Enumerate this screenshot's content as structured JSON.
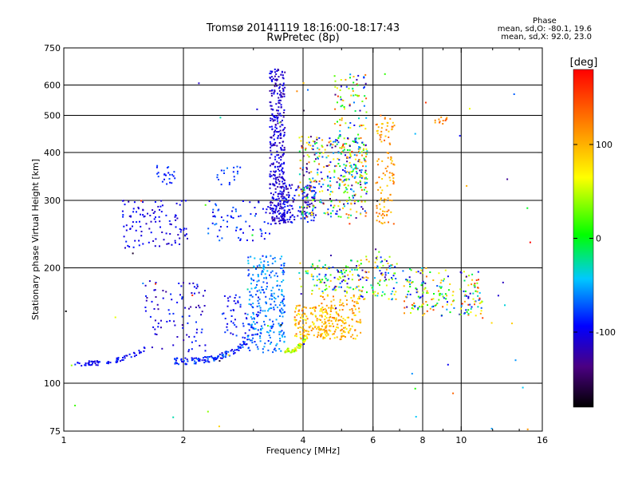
{
  "title_line1": "Tromsø 20141119 18:16:00-18:17:43",
  "title_line2": "RwPretec (8p)",
  "phase_info": {
    "title": "Phase",
    "line1": "mean, sd,O: -80.1, 19.6",
    "line2": "mean, sd,X: 92.0, 23.0"
  },
  "colorbar": {
    "label": "[deg]",
    "ticks": [
      {
        "value": 100,
        "label": "100"
      },
      {
        "value": 0,
        "label": "0"
      },
      {
        "value": -100,
        "label": "-100"
      }
    ],
    "range": [
      -180,
      180
    ]
  },
  "chart_data": {
    "type": "scatter",
    "xlabel": "Frequency [MHz]",
    "ylabel": "Stationary phase Virtual Height [km]",
    "xscale": "log",
    "yscale": "log",
    "xlim": [
      1,
      16
    ],
    "ylim": [
      75,
      750
    ],
    "grid": true,
    "xticks": [
      {
        "value": 1,
        "label": "1"
      },
      {
        "value": 2,
        "label": "2"
      },
      {
        "value": 4,
        "label": "4"
      },
      {
        "value": 6,
        "label": "6"
      },
      {
        "value": 8,
        "label": "8"
      },
      {
        "value": 10,
        "label": "10"
      },
      {
        "value": 16,
        "label": "16"
      }
    ],
    "xgrid": [
      2,
      4,
      6,
      8,
      10
    ],
    "xminor": [
      3,
      5,
      7,
      9,
      12,
      14
    ],
    "yticks": [
      {
        "value": 75,
        "label": "75"
      },
      {
        "value": 100,
        "label": "100"
      },
      {
        "value": 200,
        "label": "200"
      },
      {
        "value": 300,
        "label": "300"
      },
      {
        "value": 400,
        "label": "400"
      },
      {
        "value": 500,
        "label": "500"
      },
      {
        "value": 600,
        "label": "600"
      },
      {
        "value": 750,
        "label": "750"
      }
    ],
    "ygrid": [
      100,
      200,
      300,
      400,
      500,
      600
    ],
    "clusters": [
      {
        "f": [
          1.05,
          1.6
        ],
        "h": [
          111,
          124
        ],
        "phase": [
          -110,
          -80
        ],
        "n": 70,
        "shape": "rising"
      },
      {
        "f": [
          1.4,
          2.05
        ],
        "h": [
          225,
          300
        ],
        "phase": [
          -120,
          -85
        ],
        "n": 110
      },
      {
        "f": [
          1.7,
          1.95
        ],
        "h": [
          330,
          370
        ],
        "phase": [
          -100,
          -70
        ],
        "n": 22
      },
      {
        "f": [
          1.6,
          2.3
        ],
        "h": [
          120,
          185
        ],
        "phase": [
          -130,
          -80
        ],
        "n": 90
      },
      {
        "f": [
          1.9,
          2.9
        ],
        "h": [
          112,
          130
        ],
        "phase": [
          -110,
          -60
        ],
        "n": 120,
        "shape": "rising"
      },
      {
        "f": [
          2.3,
          3.3
        ],
        "h": [
          235,
          300
        ],
        "phase": [
          -110,
          -60
        ],
        "n": 70
      },
      {
        "f": [
          2.4,
          2.8
        ],
        "h": [
          330,
          370
        ],
        "phase": [
          -90,
          -60
        ],
        "n": 18
      },
      {
        "f": [
          2.5,
          3.1
        ],
        "h": [
          130,
          170
        ],
        "phase": [
          -110,
          -70
        ],
        "n": 60
      },
      {
        "f": [
          2.9,
          3.6
        ],
        "h": [
          120,
          215
        ],
        "phase": [
          -90,
          -40
        ],
        "n": 260
      },
      {
        "f": [
          3.3,
          3.6
        ],
        "h": [
          260,
          660
        ],
        "phase": [
          -130,
          -90
        ],
        "n": 360
      },
      {
        "f": [
          3.5,
          4.3
        ],
        "h": [
          262,
          330
        ],
        "phase": [
          -130,
          -80
        ],
        "n": 140
      },
      {
        "f": [
          3.8,
          4.6
        ],
        "h": [
          130,
          160
        ],
        "phase": [
          60,
          140
        ],
        "n": 130
      },
      {
        "f": [
          3.6,
          4.1
        ],
        "h": [
          120,
          135
        ],
        "phase": [
          20,
          90
        ],
        "n": 60,
        "shape": "rising"
      },
      {
        "f": [
          4.4,
          5.6
        ],
        "h": [
          130,
          170
        ],
        "phase": [
          70,
          130
        ],
        "n": 170
      },
      {
        "f": [
          3.9,
          5.6
        ],
        "h": [
          170,
          210
        ],
        "phase": [
          -130,
          100
        ],
        "n": 120
      },
      {
        "f": [
          3.9,
          5.8
        ],
        "h": [
          270,
          440
        ],
        "phase": [
          -150,
          140
        ],
        "n": 320
      },
      {
        "f": [
          4.8,
          5.8
        ],
        "h": [
          330,
          640
        ],
        "phase": [
          -140,
          160
        ],
        "n": 160
      },
      {
        "f": [
          5.5,
          6.9
        ],
        "h": [
          165,
          215
        ],
        "phase": [
          -130,
          140
        ],
        "n": 100
      },
      {
        "f": [
          6.1,
          6.8
        ],
        "h": [
          260,
          500
        ],
        "phase": [
          80,
          140
        ],
        "n": 110
      },
      {
        "f": [
          7.1,
          9.6
        ],
        "h": [
          150,
          200
        ],
        "phase": [
          -130,
          150
        ],
        "n": 120
      },
      {
        "f": [
          9.9,
          11.3
        ],
        "h": [
          150,
          200
        ],
        "phase": [
          -130,
          170
        ],
        "n": 70
      },
      {
        "f": [
          8.6,
          9.3
        ],
        "h": [
          470,
          495
        ],
        "phase": [
          100,
          150
        ],
        "n": 12
      },
      {
        "f": [
          1.0,
          15.0
        ],
        "h": [
          75,
          650
        ],
        "phase": [
          -180,
          180
        ],
        "n": 60
      }
    ]
  }
}
